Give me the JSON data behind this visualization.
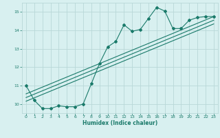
{
  "xlabel": "Humidex (Indice chaleur)",
  "bg_color": "#d8f0f0",
  "grid_color": "#b8d8d8",
  "line_color": "#1a7a6a",
  "xlim": [
    -0.5,
    23.5
  ],
  "ylim": [
    9.5,
    15.5
  ],
  "xticks": [
    0,
    1,
    2,
    3,
    4,
    5,
    6,
    7,
    8,
    9,
    10,
    11,
    12,
    13,
    14,
    15,
    16,
    17,
    18,
    19,
    20,
    21,
    22,
    23
  ],
  "yticks": [
    10,
    11,
    12,
    13,
    14,
    15
  ],
  "main_series_x": [
    0,
    1,
    2,
    3,
    4,
    5,
    6,
    7,
    8,
    9,
    10,
    11,
    12,
    13,
    14,
    15,
    16,
    17,
    18,
    19,
    20,
    21,
    22,
    23
  ],
  "main_series_y": [
    11.0,
    10.2,
    9.75,
    9.75,
    9.9,
    9.85,
    9.85,
    10.0,
    11.1,
    12.2,
    13.1,
    13.4,
    14.3,
    13.95,
    14.05,
    14.65,
    15.25,
    15.05,
    14.1,
    14.1,
    14.55,
    14.7,
    14.75,
    14.75
  ],
  "line1_x": [
    0,
    23
  ],
  "line1_y": [
    10.55,
    14.75
  ],
  "line2_x": [
    0,
    23
  ],
  "line2_y": [
    10.35,
    14.55
  ],
  "line3_x": [
    0,
    23
  ],
  "line3_y": [
    10.15,
    14.35
  ]
}
